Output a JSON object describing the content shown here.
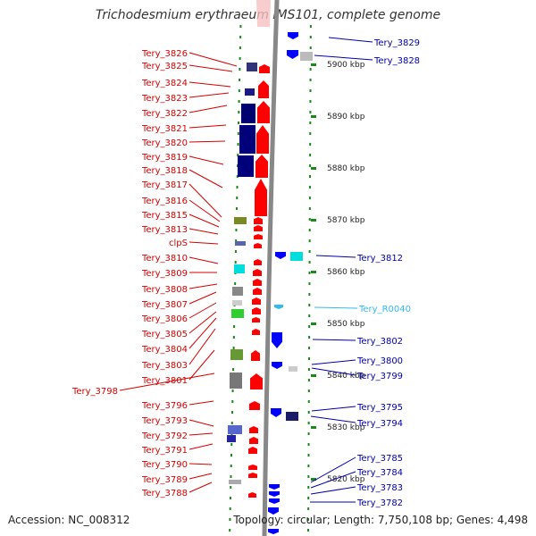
{
  "title": "Trichodesmium erythraeum IMS101, complete genome",
  "footer": {
    "accession": "Accession: NC_008312",
    "summary": "Topology: circular; Length: 7,750,108 bp; Genes: 4,498"
  },
  "colors": {
    "forward_label": "#d40000",
    "reverse_label": "#0000aa",
    "rna_label": "#33bbee",
    "forward_gene": "#ff0000",
    "reverse_gene": "#0000ff",
    "tick": "#1a8a1a",
    "backbone": "#888888"
  },
  "scale": {
    "unit": "kbp",
    "ticks": [
      {
        "label": "5900 kbp",
        "pos_kbp": 5900
      },
      {
        "label": "5890 kbp",
        "pos_kbp": 5890
      },
      {
        "label": "5880 kbp",
        "pos_kbp": 5880
      },
      {
        "label": "5870 kbp",
        "pos_kbp": 5870
      },
      {
        "label": "5860 kbp",
        "pos_kbp": 5860
      },
      {
        "label": "5850 kbp",
        "pos_kbp": 5850
      },
      {
        "label": "5840 kbp",
        "pos_kbp": 5840
      },
      {
        "label": "5830 kbp",
        "pos_kbp": 5830
      },
      {
        "label": "5820 kbp",
        "pos_kbp": 5820
      }
    ]
  },
  "left_labels": [
    "Tery_3826",
    "Tery_3825",
    "Tery_3824",
    "Tery_3823",
    "Tery_3822",
    "Tery_3821",
    "Tery_3820",
    "Tery_3819",
    "Tery_3818",
    "Tery_3817",
    "Tery_3816",
    "Tery_3815",
    "Tery_3813",
    "clpS",
    "Tery_3810",
    "Tery_3809",
    "Tery_3808",
    "Tery_3807",
    "Tery_3806",
    "Tery_3805",
    "Tery_3804",
    "Tery_3803",
    "Tery_3801",
    "Tery_3798",
    "Tery_3796",
    "Tery_3793",
    "Tery_3792",
    "Tery_3791",
    "Tery_3790",
    "Tery_3789",
    "Tery_3788"
  ],
  "right_labels": [
    {
      "text": "Tery_3829",
      "type": "reverse"
    },
    {
      "text": "Tery_3828",
      "type": "reverse"
    },
    {
      "text": "Tery_3812",
      "type": "reverse"
    },
    {
      "text": "Tery_R0040",
      "type": "rna"
    },
    {
      "text": "Tery_3802",
      "type": "reverse"
    },
    {
      "text": "Tery_3800",
      "type": "reverse"
    },
    {
      "text": "Tery_3799",
      "type": "reverse"
    },
    {
      "text": "Tery_3795",
      "type": "reverse"
    },
    {
      "text": "Tery_3794",
      "type": "reverse"
    },
    {
      "text": "Tery_3785",
      "type": "reverse"
    },
    {
      "text": "Tery_3784",
      "type": "reverse"
    },
    {
      "text": "Tery_3783",
      "type": "reverse"
    },
    {
      "text": "Tery_3782",
      "type": "reverse"
    }
  ]
}
